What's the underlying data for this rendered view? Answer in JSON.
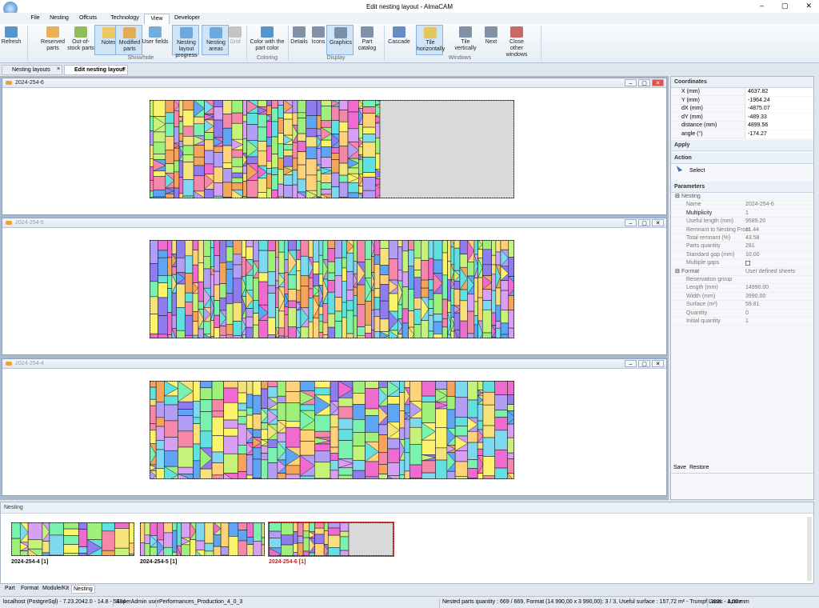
{
  "window": {
    "title": "Edit nesting layout  - AlmaCAM"
  },
  "ribbon": {
    "tabs": [
      "File",
      "Nesting",
      "Offcuts",
      "Technology",
      "View",
      "Developer"
    ],
    "buttons": [
      "Refresh",
      "Reserved parts",
      "Out-of-stock parts",
      "Notes",
      "Modified parts",
      "User fields",
      "Nesting layout progress",
      "Nesting areas",
      "Grid",
      "Color with the part color",
      "Details",
      "Icons",
      "Graphics",
      "Part catalog",
      "Cascade",
      "Tile horizontally",
      "Tile vertically",
      "Next",
      "Close other windows"
    ],
    "groups": [
      "Show/hide",
      "Coloring",
      "Display",
      "Windows"
    ]
  },
  "doc_tabs": [
    "Nesting layouts",
    "Edit nesting layout"
  ],
  "layouts": [
    "2024-254-6",
    "2024-254-5",
    "2024-254-4"
  ],
  "coordinates": {
    "title": "Coordinates",
    "rows": [
      {
        "label": "X (mm)",
        "value": "4637.82"
      },
      {
        "label": "Y (mm)",
        "value": "-1964.24"
      },
      {
        "label": "dX (mm)",
        "value": "-4875.07"
      },
      {
        "label": "dY (mm)",
        "value": "-489.33"
      },
      {
        "label": "distance (mm)",
        "value": "4899.56"
      },
      {
        "label": "angle (°)",
        "value": "-174.27"
      }
    ]
  },
  "apply": "Apply",
  "action": {
    "title": "Action",
    "select": "Select"
  },
  "parameters": {
    "title": "Parameters",
    "nesting": {
      "label": "Nesting",
      "rows": [
        {
          "label": "Name",
          "value": "2024-254-6"
        },
        {
          "label": "Multiplicity",
          "value": "1"
        },
        {
          "label": "Useful length (mm)",
          "value": "9589.20"
        },
        {
          "label": "Remnant to Nesting From",
          "value": "11.44"
        },
        {
          "label": "Total remnant (%)",
          "value": "43.58"
        },
        {
          "label": "Parts quantity",
          "value": "281"
        },
        {
          "label": "Standard gap (mm)",
          "value": "10.00"
        },
        {
          "label": "Multiple gaps"
        }
      ]
    },
    "format": {
      "label": "Format",
      "value": "User defined sheets",
      "rows": [
        {
          "label": "Reservation group"
        },
        {
          "label": "Length (mm)",
          "value": "14990.00"
        },
        {
          "label": "Width (mm)",
          "value": "3990.00"
        },
        {
          "label": "Surface (m²)",
          "value": "59.81"
        },
        {
          "label": "Quantity",
          "value": "0"
        },
        {
          "label": "Initial quantity",
          "value": "1"
        }
      ]
    }
  },
  "save": "Save",
  "restore": "Restore",
  "nesting_panel": {
    "title": "Nesting",
    "thumbnails": [
      "2024-254-4 [1]",
      "2024-254-5 [1]",
      "2024-254-6 [1]"
    ]
  },
  "bottom_tabs": [
    "Part",
    "Format",
    "Module/Kit",
    "Nesting"
  ],
  "status": [
    "localhost (PostgreSql) - 7.23.2042.0 - 14.8 - 5434",
    "SuperAdmin user",
    "Performances_Production_4_0_3",
    "Nested parts quantity : 669 / 669, Format (14 990,00 x 3 990,00): 3 / 3, Useful surface : 157,72 m² - Trumpf Laser - Azote",
    "310L - 1,00 mm"
  ]
}
